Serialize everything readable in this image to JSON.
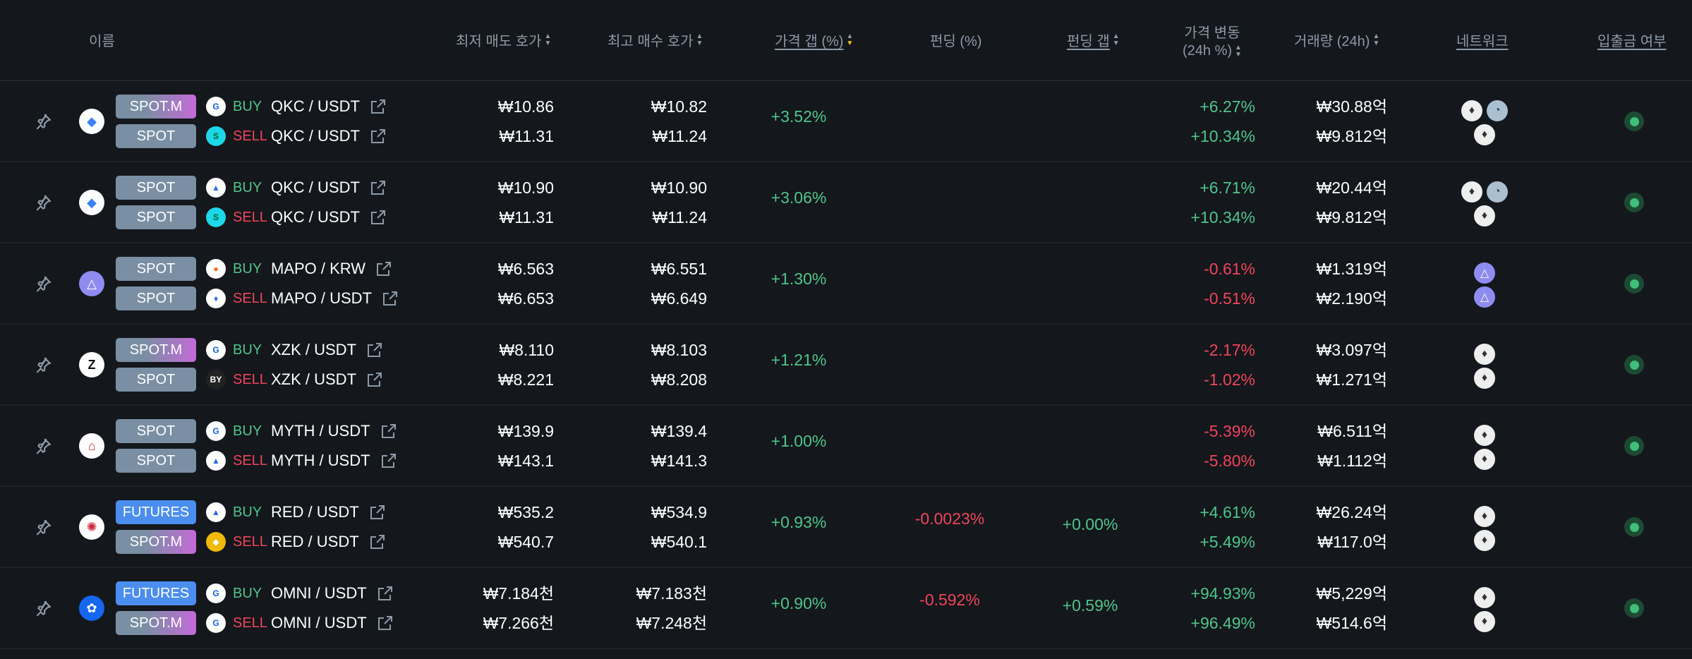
{
  "header": {
    "name": "이름",
    "ask": "최저 매도 호가",
    "bid": "최고 매수 호가",
    "gap": "가격 갭 (%)",
    "funding": "펀딩 (%)",
    "funding_gap": "펀딩 갭",
    "change_l1": "가격 변동",
    "change_l2": "(24h %)",
    "volume": "거래량 (24h)",
    "network": "네트워크",
    "deposit": "입출금 여부"
  },
  "colors": {
    "buy": "#4ec68a",
    "sell": "#f0455a",
    "spot": "#7a8fa3",
    "futures": "#4b8ef0",
    "spot_m": "#c36ad8",
    "sort_active": "#f5c400"
  },
  "rows": [
    {
      "coin_icon": "quarkchain-icon",
      "legs": [
        {
          "type": "SPOT.M",
          "exchange": "upbit-icon",
          "side": "BUY",
          "pair": "QKC / USDT"
        },
        {
          "type": "SPOT",
          "exchange": "bitget-icon",
          "side": "SELL",
          "pair": "QKC / USDT"
        }
      ],
      "ask": [
        "₩10.86",
        "₩11.31"
      ],
      "bid": [
        "₩10.82",
        "₩11.24"
      ],
      "gap": "+3.52%",
      "funding": "",
      "funding_gap": "",
      "change": [
        "+6.27%",
        "+10.34%"
      ],
      "volume": [
        "₩30.88억",
        "₩9.812억"
      ],
      "networks": [
        [
          "eth",
          "qkc"
        ],
        [
          "eth"
        ]
      ],
      "deposit": "enabled"
    },
    {
      "coin_icon": "quarkchain-icon",
      "legs": [
        {
          "type": "SPOT",
          "exchange": "mountain-exchange-icon",
          "side": "BUY",
          "pair": "QKC / USDT"
        },
        {
          "type": "SPOT",
          "exchange": "bitget-icon",
          "side": "SELL",
          "pair": "QKC / USDT"
        }
      ],
      "ask": [
        "₩10.90",
        "₩11.31"
      ],
      "bid": [
        "₩10.90",
        "₩11.24"
      ],
      "gap": "+3.06%",
      "funding": "",
      "funding_gap": "",
      "change": [
        "+6.71%",
        "+10.34%"
      ],
      "volume": [
        "₩20.44억",
        "₩9.812억"
      ],
      "networks": [
        [
          "eth",
          "qkc"
        ],
        [
          "eth"
        ]
      ],
      "deposit": "enabled"
    },
    {
      "coin_icon": "mapo-icon",
      "legs": [
        {
          "type": "SPOT",
          "exchange": "bithumb-icon",
          "side": "BUY",
          "pair": "MAPO / KRW"
        },
        {
          "type": "SPOT",
          "exchange": "htx-icon",
          "side": "SELL",
          "pair": "MAPO / USDT"
        }
      ],
      "ask": [
        "₩6.563",
        "₩6.653"
      ],
      "bid": [
        "₩6.551",
        "₩6.649"
      ],
      "gap": "+1.30%",
      "funding": "",
      "funding_gap": "",
      "change": [
        "-0.61%",
        "-0.51%"
      ],
      "volume": [
        "₩1.319억",
        "₩2.190억"
      ],
      "networks": [
        [
          "mapo"
        ],
        [
          "mapo"
        ]
      ],
      "deposit": "enabled"
    },
    {
      "coin_icon": "xzk-icon",
      "legs": [
        {
          "type": "SPOT.M",
          "exchange": "upbit-icon",
          "side": "BUY",
          "pair": "XZK / USDT"
        },
        {
          "type": "SPOT",
          "exchange": "bybit-icon",
          "side": "SELL",
          "pair": "XZK / USDT"
        }
      ],
      "ask": [
        "₩8.110",
        "₩8.221"
      ],
      "bid": [
        "₩8.103",
        "₩8.208"
      ],
      "gap": "+1.21%",
      "funding": "",
      "funding_gap": "",
      "change": [
        "-2.17%",
        "-1.02%"
      ],
      "volume": [
        "₩3.097억",
        "₩1.271억"
      ],
      "networks": [
        [
          "eth"
        ],
        [
          "eth"
        ]
      ],
      "deposit": "enabled"
    },
    {
      "coin_icon": "myth-icon",
      "legs": [
        {
          "type": "SPOT",
          "exchange": "upbit-icon",
          "side": "BUY",
          "pair": "MYTH / USDT"
        },
        {
          "type": "SPOT",
          "exchange": "mountain-exchange-icon",
          "side": "SELL",
          "pair": "MYTH / USDT"
        }
      ],
      "ask": [
        "₩139.9",
        "₩143.1"
      ],
      "bid": [
        "₩139.4",
        "₩141.3"
      ],
      "gap": "+1.00%",
      "funding": "",
      "funding_gap": "",
      "change": [
        "-5.39%",
        "-5.80%"
      ],
      "volume": [
        "₩6.511억",
        "₩1.112억"
      ],
      "networks": [
        [
          "eth"
        ],
        [
          "eth"
        ]
      ],
      "deposit": "enabled"
    },
    {
      "coin_icon": "red-icon",
      "legs": [
        {
          "type": "FUTURES",
          "exchange": "mountain-exchange-icon",
          "side": "BUY",
          "pair": "RED / USDT"
        },
        {
          "type": "SPOT.M",
          "exchange": "binance-icon",
          "side": "SELL",
          "pair": "RED / USDT"
        }
      ],
      "ask": [
        "₩535.2",
        "₩540.7"
      ],
      "bid": [
        "₩534.9",
        "₩540.1"
      ],
      "gap": "+0.93%",
      "funding": "-0.0023%",
      "funding_gap": "+0.00%",
      "change": [
        "+4.61%",
        "+5.49%"
      ],
      "volume": [
        "₩26.24억",
        "₩117.0억"
      ],
      "networks": [
        [
          "eth"
        ],
        [
          "eth"
        ]
      ],
      "deposit": "enabled"
    },
    {
      "coin_icon": "omni-icon",
      "legs": [
        {
          "type": "FUTURES",
          "exchange": "upbit-icon",
          "side": "BUY",
          "pair": "OMNI / USDT"
        },
        {
          "type": "SPOT.M",
          "exchange": "upbit-icon",
          "side": "SELL",
          "pair": "OMNI / USDT"
        }
      ],
      "ask": [
        "₩7.184천",
        "₩7.266천"
      ],
      "bid": [
        "₩7.183천",
        "₩7.248천"
      ],
      "gap": "+0.90%",
      "funding": "-0.592%",
      "funding_gap": "+0.59%",
      "change": [
        "+94.93%",
        "+96.49%"
      ],
      "volume": [
        "₩5,229억",
        "₩514.6억"
      ],
      "networks": [
        [
          "eth"
        ],
        [
          "eth"
        ]
      ],
      "deposit": "enabled"
    }
  ]
}
